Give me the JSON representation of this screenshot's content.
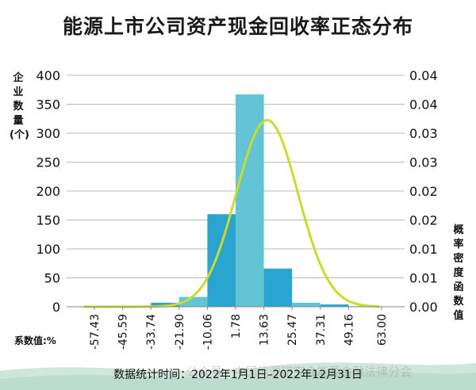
{
  "chart_data": {
    "type": "bar",
    "title": "能源上市公司资产现金回收率正态分布",
    "ylabel_left": "企业数量(个)",
    "ylabel_right": "概率密度函数值",
    "xlabel": "系数值:%",
    "x_ticks": [
      "-57.43",
      "-45.59",
      "-33.74",
      "-21.90",
      "-10.06",
      "1.78",
      "13.63",
      "25.47",
      "37.31",
      "49.16",
      "63.00"
    ],
    "bins": [
      {
        "from": -57.43,
        "to": -45.59,
        "count": 1
      },
      {
        "from": -45.59,
        "to": -33.74,
        "count": 2
      },
      {
        "from": -33.74,
        "to": -21.9,
        "count": 7
      },
      {
        "from": -21.9,
        "to": -10.06,
        "count": 17
      },
      {
        "from": -10.06,
        "to": 1.78,
        "count": 160
      },
      {
        "from": 1.78,
        "to": 13.63,
        "count": 367
      },
      {
        "from": 13.63,
        "to": 25.47,
        "count": 66
      },
      {
        "from": 25.47,
        "to": 37.31,
        "count": 7
      },
      {
        "from": 37.31,
        "to": 49.16,
        "count": 4
      },
      {
        "from": 49.16,
        "to": 63.0,
        "count": 1
      }
    ],
    "bar_colors": [
      "#2aa5cf",
      "#62c4d4",
      "#2aa5cf",
      "#62c4d4",
      "#2aa5cf",
      "#62c4d4",
      "#2aa5cf",
      "#62c4d4",
      "#2aa5cf",
      "#62c4d4"
    ],
    "curve_color": "#c9dc2b",
    "left_axis": {
      "ticks": [
        "0",
        "50",
        "100",
        "150",
        "200",
        "250",
        "300",
        "350",
        "400"
      ],
      "ylim": [
        0,
        400
      ]
    },
    "right_axis": {
      "ticks": [
        "0.00",
        "0.01",
        "0.01",
        "0.02",
        "0.02",
        "0.03",
        "0.03",
        "0.04",
        "0.04"
      ]
    },
    "density_curve": {
      "x": [
        -62,
        -50,
        -40,
        -30,
        -20,
        -10,
        0,
        5,
        8,
        10,
        15,
        20,
        30,
        40,
        50,
        60
      ],
      "density": [
        0.00035,
        0.00086,
        0.00183,
        0.00389,
        0.00776,
        0.01446,
        0.0245,
        0.0302,
        0.0329,
        0.0343,
        0.0363,
        0.0343,
        0.0245,
        0.01446,
        0.00776,
        0.00389
      ]
    },
    "grid": "horizontal"
  },
  "footer": {
    "stat_time": "数据统计时间：2022年1月1日–2022年12月31日",
    "watermark": "公众号 · 中国能源研究会能源金融法律分会"
  }
}
